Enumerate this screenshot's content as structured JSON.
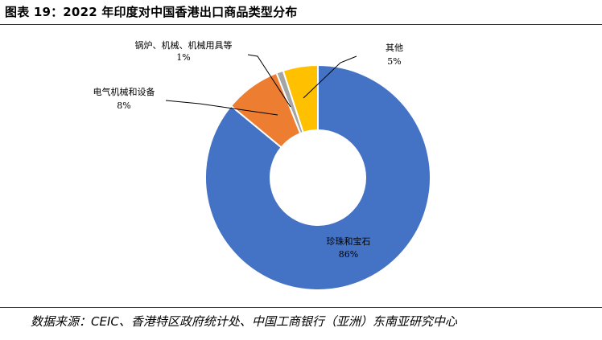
{
  "figure": {
    "title": "图表 19：2022 年印度对中国香港出口商品类型分布",
    "source": "数据来源：CEIC、香港特区政府统计处、中国工商银行（亚洲）东南亚研究中心"
  },
  "chart_data": {
    "type": "pie",
    "style": "donut",
    "title": "",
    "slices": [
      {
        "name": "珍珠和宝石",
        "value": 86,
        "label": "86%",
        "color": "#4472C4"
      },
      {
        "name": "电气机械和设备",
        "value": 8,
        "label": "8%",
        "color": "#ED7D31"
      },
      {
        "name": "锅炉、机械、机械用具等",
        "value": 1,
        "label": "1%",
        "color": "#A5A5A5"
      },
      {
        "name": "其他",
        "value": 5,
        "label": "5%",
        "color": "#FFC000"
      }
    ],
    "start_angle_deg": 0,
    "direction": "clockwise",
    "legend": "none"
  }
}
